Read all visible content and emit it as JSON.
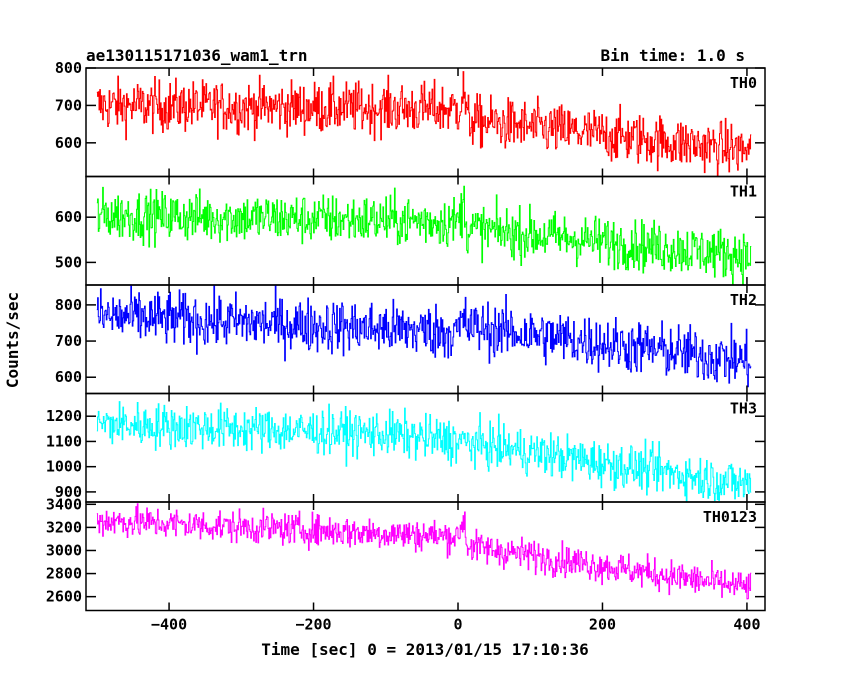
{
  "chart_data": {
    "type": "line",
    "title": "ae130115171036_wam1_trn",
    "bin_time_label": "Bin time: 1.0 s",
    "xlabel": "Time [sec] 0 = 2013/01/15 17:10:36",
    "ylabel": "Counts/sec",
    "xlim": [
      -515,
      425
    ],
    "x_ticks": [
      -400,
      -200,
      0,
      200,
      400
    ],
    "x_tick_labels": [
      "−400",
      "−200",
      "0",
      "200",
      "400"
    ],
    "bin_seconds": 1.0,
    "x_start": -500,
    "x_end": 405,
    "panels": [
      {
        "name": "TH0",
        "color": "#ff0000",
        "ylim": [
          510,
          800
        ],
        "y_ticks": [
          600,
          700,
          800
        ],
        "y_tick_labels": [
          "600",
          "700",
          "800"
        ],
        "trend_x": [
          -500,
          0,
          8,
          12,
          400
        ],
        "trend_y": [
          700,
          690,
          740,
          660,
          580
        ],
        "noise": 35
      },
      {
        "name": "TH1",
        "color": "#00ff00",
        "ylim": [
          450,
          690
        ],
        "y_ticks": [
          500,
          600
        ],
        "y_tick_labels": [
          "500",
          "600"
        ],
        "trend_x": [
          -500,
          0,
          8,
          12,
          400
        ],
        "trend_y": [
          605,
          590,
          630,
          575,
          515
        ],
        "noise": 28
      },
      {
        "name": "TH2",
        "color": "#0000ff",
        "ylim": [
          555,
          855
        ],
        "y_ticks": [
          600,
          700,
          800
        ],
        "y_tick_labels": [
          "600",
          "700",
          "800"
        ],
        "trend_x": [
          -500,
          0,
          8,
          12,
          400
        ],
        "trend_y": [
          770,
          725,
          760,
          740,
          645
        ],
        "noise": 38
      },
      {
        "name": "TH3",
        "color": "#00ffff",
        "ylim": [
          860,
          1290
        ],
        "y_ticks": [
          900,
          1000,
          1100,
          1200
        ],
        "y_tick_labels": [
          "900",
          "1000",
          "1100",
          "1200"
        ],
        "trend_x": [
          -500,
          -100,
          0,
          400
        ],
        "trend_y": [
          1170,
          1130,
          1100,
          930
        ],
        "noise": 45
      },
      {
        "name": "TH0123",
        "color": "#ff00ff",
        "ylim": [
          2480,
          3420
        ],
        "y_ticks": [
          2600,
          2800,
          3000,
          3200,
          3400
        ],
        "y_tick_labels": [
          "2600",
          "2800",
          "3000",
          "3200",
          "3400"
        ],
        "trend_x": [
          -500,
          0,
          8,
          12,
          400
        ],
        "trend_y": [
          3260,
          3120,
          3290,
          3040,
          2680
        ],
        "noise": 70
      }
    ]
  }
}
